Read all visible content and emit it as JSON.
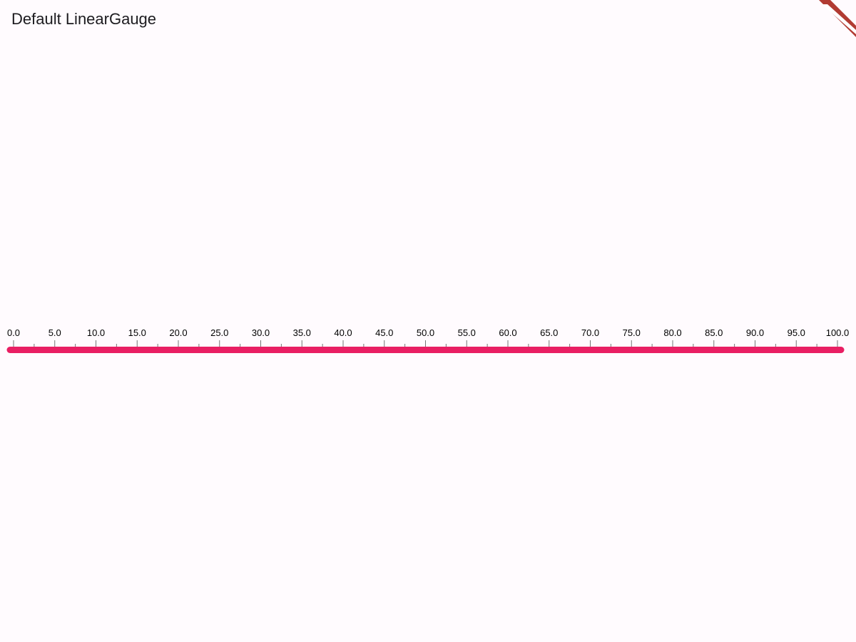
{
  "app_bar": {
    "title": "Default LinearGauge"
  },
  "debug_banner": {
    "icon": "debug-banner-icon",
    "colors": {
      "stripe": "#b13b32",
      "inner": "#ffffff"
    }
  },
  "gauge": {
    "minimum": 0,
    "maximum": 100,
    "major_interval": 5,
    "minor_ticks_per_interval": 1,
    "colors": {
      "axis": "#e91e63",
      "tick": "#757575",
      "label": "#000000"
    },
    "labels": [
      "0.0",
      "5.0",
      "10.0",
      "15.0",
      "20.0",
      "25.0",
      "30.0",
      "35.0",
      "40.0",
      "45.0",
      "50.0",
      "55.0",
      "60.0",
      "65.0",
      "70.0",
      "75.0",
      "80.0",
      "85.0",
      "90.0",
      "95.0",
      "100.0"
    ]
  }
}
